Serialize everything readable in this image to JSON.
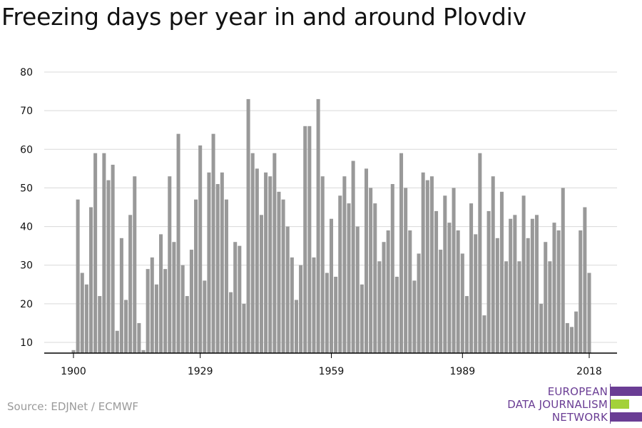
{
  "title": "Freezing days per year in and around Plovdiv",
  "source": "Source: EDJNet / ECMWF",
  "logo": {
    "lines": [
      "EUROPEAN",
      "DATA JOURNALISM",
      "NETWORK"
    ],
    "colors": {
      "purple": "#6a3d94",
      "green": "#a3d13a"
    }
  },
  "colors": {
    "bar": "#999999",
    "grid": "#d9d9d9",
    "axis": "#000000",
    "text": "#111111"
  },
  "chart_data": {
    "type": "bar",
    "title": "Freezing days per year in and around Plovdiv",
    "xlabel": "",
    "ylabel": "",
    "x_ticks": [
      1900,
      1929,
      1959,
      1989,
      2018
    ],
    "y_ticks": [
      10,
      20,
      30,
      40,
      50,
      60,
      70,
      80
    ],
    "ylim": [
      7,
      80
    ],
    "xlim": [
      1900,
      2018
    ],
    "grid": true,
    "legend": "none",
    "x": [
      1900,
      1901,
      1902,
      1903,
      1904,
      1905,
      1906,
      1907,
      1908,
      1909,
      1910,
      1911,
      1912,
      1913,
      1914,
      1915,
      1916,
      1917,
      1918,
      1919,
      1920,
      1921,
      1922,
      1923,
      1924,
      1925,
      1926,
      1927,
      1928,
      1929,
      1930,
      1931,
      1932,
      1933,
      1934,
      1935,
      1936,
      1937,
      1938,
      1939,
      1940,
      1941,
      1942,
      1943,
      1944,
      1945,
      1946,
      1947,
      1948,
      1949,
      1950,
      1951,
      1952,
      1953,
      1954,
      1955,
      1956,
      1957,
      1958,
      1959,
      1960,
      1961,
      1962,
      1963,
      1964,
      1965,
      1966,
      1967,
      1968,
      1969,
      1970,
      1971,
      1972,
      1973,
      1974,
      1975,
      1976,
      1977,
      1978,
      1979,
      1980,
      1981,
      1982,
      1983,
      1984,
      1985,
      1986,
      1987,
      1988,
      1989,
      1990,
      1991,
      1992,
      1993,
      1994,
      1995,
      1996,
      1997,
      1998,
      1999,
      2000,
      2001,
      2002,
      2003,
      2004,
      2005,
      2006,
      2007,
      2008,
      2009,
      2010,
      2011,
      2012,
      2013,
      2014,
      2015,
      2016,
      2017,
      2018
    ],
    "values": [
      8,
      47,
      28,
      25,
      45,
      59,
      22,
      59,
      52,
      56,
      13,
      37,
      21,
      43,
      53,
      15,
      8,
      29,
      32,
      25,
      38,
      29,
      53,
      36,
      64,
      30,
      22,
      34,
      47,
      61,
      26,
      54,
      64,
      51,
      54,
      47,
      23,
      36,
      35,
      20,
      73,
      59,
      55,
      43,
      54,
      53,
      59,
      49,
      47,
      40,
      32,
      21,
      30,
      66,
      66,
      32,
      73,
      53,
      28,
      42,
      27,
      48,
      53,
      46,
      57,
      40,
      25,
      55,
      50,
      46,
      31,
      36,
      39,
      51,
      27,
      59,
      50,
      39,
      26,
      33,
      54,
      52,
      53,
      44,
      34,
      48,
      41,
      50,
      39,
      33,
      22,
      46,
      38,
      59,
      17,
      44,
      53,
      37,
      49,
      31,
      42,
      43,
      31,
      48,
      37,
      42,
      43,
      20,
      36,
      31,
      41,
      39,
      50,
      15,
      14,
      18,
      39,
      45,
      28
    ]
  }
}
